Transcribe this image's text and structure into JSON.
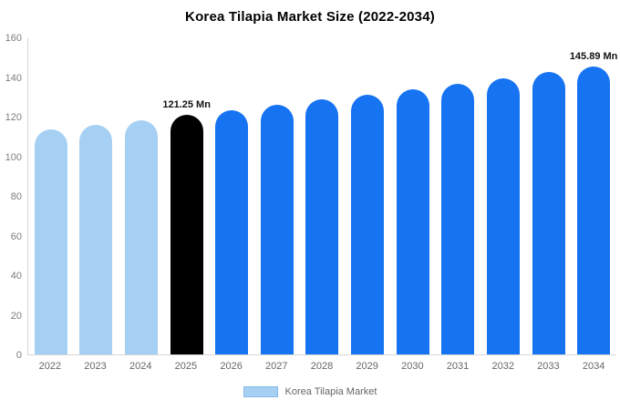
{
  "title": "Korea Tilapia Market Size (2022-2034)",
  "legend": {
    "label": "Korea Tilapia Market"
  },
  "colors": {
    "historical_bar": "#a6d0f3",
    "highlight_bar": "#000000",
    "forecast_bar": "#1673f2",
    "axis_line": "#d6d6d6",
    "tick_text": "#7d7d7d",
    "legend_swatch_fill": "#a6d0f3",
    "legend_swatch_border": "#8ab9e8"
  },
  "chart_data": {
    "type": "bar",
    "title": "Korea Tilapia Market Size (2022-2034)",
    "categories": [
      "2022",
      "2023",
      "2024",
      "2025",
      "2026",
      "2027",
      "2028",
      "2029",
      "2030",
      "2031",
      "2032",
      "2033",
      "2034"
    ],
    "values": [
      113.9,
      116.3,
      118.7,
      121.25,
      123.8,
      126.3,
      128.9,
      131.6,
      134.3,
      137.1,
      139.9,
      142.8,
      145.89
    ],
    "bar_colors": [
      "#a6d0f3",
      "#a6d0f3",
      "#a6d0f3",
      "#000000",
      "#1673f2",
      "#1673f2",
      "#1673f2",
      "#1673f2",
      "#1673f2",
      "#1673f2",
      "#1673f2",
      "#1673f2",
      "#1673f2"
    ],
    "annotations": [
      {
        "category": "2025",
        "text": "121.25 Mn"
      },
      {
        "category": "2034",
        "text": "145.89 Mn"
      }
    ],
    "xlabel": "",
    "ylabel": "",
    "ylim": [
      0,
      160
    ],
    "yticks": [
      0,
      20,
      40,
      60,
      80,
      100,
      120,
      140,
      160
    ],
    "grid": false,
    "legend_entries": [
      "Korea Tilapia Market"
    ],
    "legend_position": "bottom"
  }
}
